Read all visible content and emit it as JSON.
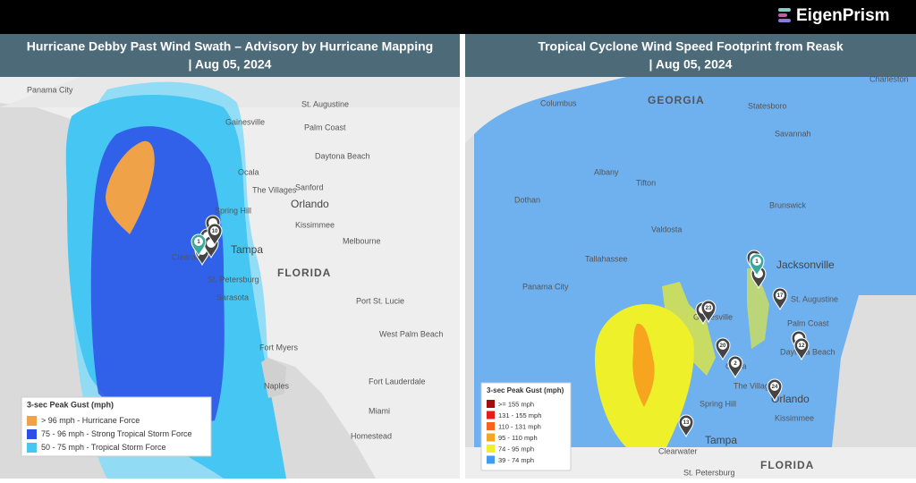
{
  "header": {
    "brand": "EigenPrism"
  },
  "panels": [
    {
      "title": "Hurricane Debby Past Wind Swath – Advisory by Hurricane Mapping",
      "date": "| Aug 05, 2024",
      "map_labels": [
        "Panama City",
        "St. Augustine",
        "Gainesville",
        "Palm Coast",
        "Daytona Beach",
        "Ocala",
        "The Villages",
        "Sanford",
        "Orlando",
        "Spring Hill",
        "Kissimmee",
        "Melbourne",
        "Clearwater",
        "Tampa",
        "FLORIDA",
        "St. Petersburg",
        "Sarasota",
        "Port St. Lucie",
        "West Palm Beach",
        "Fort Myers",
        "Fort Lauderdale",
        "Naples",
        "Miami",
        "Homestead"
      ],
      "markers": [
        "10",
        "1"
      ],
      "legend": {
        "title": "3-sec Peak Gust (mph)",
        "items": [
          {
            "label": "> 96 mph - Hurricane Force",
            "color": "#f0a248"
          },
          {
            "label": "75 - 96 mph - Strong Tropical Storm Force",
            "color": "#2d4fe6"
          },
          {
            "label": "50 - 75 mph - Tropical Storm Force",
            "color": "#46c6f2"
          }
        ]
      }
    },
    {
      "title": "Tropical Cyclone Wind Speed Footprint from Reask",
      "date": "| Aug 05, 2024",
      "map_labels": [
        "Charleston",
        "Columbus",
        "GEORGIA",
        "Statesboro",
        "Savannah",
        "Albany",
        "Tifton",
        "Dothan",
        "Brunswick",
        "Valdosta",
        "Tallahassee",
        "Jacksonville",
        "Panama City",
        "St. Augustine",
        "Palm Coast",
        "Gainesville",
        "Ocala",
        "Daytona Beach",
        "The Villages",
        "Orlando",
        "Kissimmee",
        "Spring Hill",
        "Tampa",
        "Clearwater",
        "St. Petersburg",
        "FLORIDA"
      ],
      "markers": [
        "1",
        "17",
        "23",
        "20",
        "2",
        "12",
        "24",
        "13"
      ],
      "legend": {
        "title": "3-sec Peak Gust (mph)",
        "items": [
          {
            "label": ">= 155 mph",
            "color": "#a30d0d"
          },
          {
            "label": "131 - 155 mph",
            "color": "#e81b1b"
          },
          {
            "label": "110 - 131 mph",
            "color": "#f7631c"
          },
          {
            "label": "95 - 110 mph",
            "color": "#f7a51f"
          },
          {
            "label": "74 - 95 mph",
            "color": "#eef02a"
          },
          {
            "label": "39 - 74 mph",
            "color": "#3f9cf0"
          }
        ]
      }
    }
  ]
}
